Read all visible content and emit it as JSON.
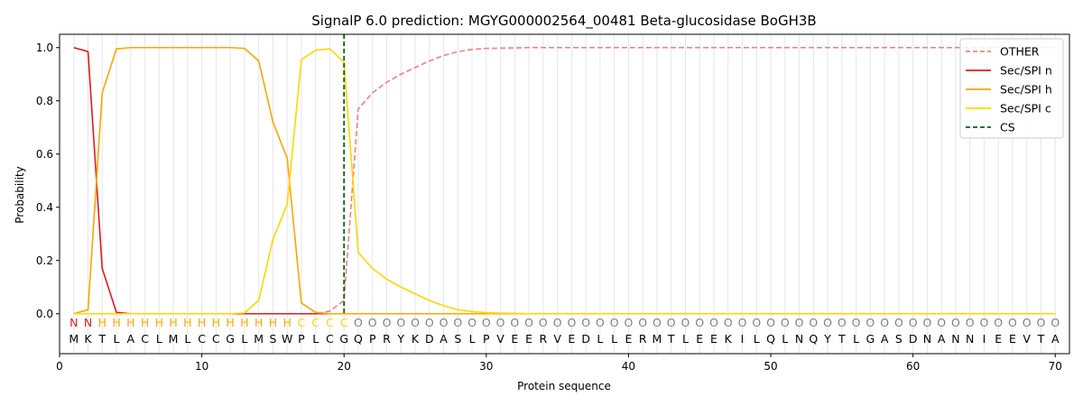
{
  "chart_data": {
    "type": "line",
    "title": "SignalP 6.0 prediction: MGYG000002564_00481 Beta-glucosidase BoGH3B",
    "xlabel": "Protein sequence",
    "ylabel": "Probability",
    "xlim": [
      0,
      71
    ],
    "ylim": [
      -0.15,
      1.05
    ],
    "x_ticks": [
      0,
      10,
      20,
      30,
      40,
      50,
      60,
      70
    ],
    "y_ticks": [
      0.0,
      0.2,
      0.4,
      0.6,
      0.8,
      1.0
    ],
    "x_tick_labels": [
      "0",
      "10",
      "20",
      "30",
      "40",
      "50",
      "60",
      "70"
    ],
    "y_tick_labels": [
      "0.0",
      "0.2",
      "0.4",
      "0.6",
      "0.8",
      "1.0"
    ],
    "grid": "vertical lines at each residue",
    "legend_position": "top-right",
    "sequence": [
      "M",
      "K",
      "T",
      "L",
      "A",
      "C",
      "L",
      "M",
      "L",
      "C",
      "C",
      "G",
      "L",
      "M",
      "S",
      "W",
      "P",
      "L",
      "C",
      "G",
      "Q",
      "P",
      "R",
      "Y",
      "K",
      "D",
      "A",
      "S",
      "L",
      "P",
      "V",
      "E",
      "E",
      "R",
      "V",
      "E",
      "D",
      "L",
      "L",
      "E",
      "R",
      "M",
      "T",
      "L",
      "E",
      "E",
      "K",
      "I",
      "L",
      "Q",
      "L",
      "N",
      "Q",
      "Y",
      "T",
      "L",
      "G",
      "A",
      "S",
      "D",
      "N",
      "A",
      "N",
      "N",
      "I",
      "E",
      "E",
      "V",
      "T",
      "A"
    ],
    "annotation": [
      "N",
      "N",
      "H",
      "H",
      "H",
      "H",
      "H",
      "H",
      "H",
      "H",
      "H",
      "H",
      "H",
      "H",
      "H",
      "H",
      "C",
      "C",
      "C",
      "C",
      "O",
      "O",
      "O",
      "O",
      "O",
      "O",
      "O",
      "O",
      "O",
      "O",
      "O",
      "O",
      "O",
      "O",
      "O",
      "O",
      "O",
      "O",
      "O",
      "O",
      "O",
      "O",
      "O",
      "O",
      "O",
      "O",
      "O",
      "O",
      "O",
      "O",
      "O",
      "O",
      "O",
      "O",
      "O",
      "O",
      "O",
      "O",
      "O",
      "O",
      "O",
      "O",
      "O",
      "O",
      "O",
      "O",
      "O",
      "O",
      "O",
      "O"
    ],
    "annotation_colors": {
      "N": "#e41a1c",
      "H": "#ffa500",
      "C": "#ffd700",
      "O": "#808080"
    },
    "cs_position": 20,
    "series": [
      {
        "name": "OTHER",
        "color": "#f08080",
        "dash": true,
        "values": [
          0.0,
          0.0,
          0.0,
          0.0,
          0.0,
          0.0,
          0.0,
          0.0,
          0.0,
          0.0,
          0.0,
          0.0,
          0.0,
          0.0,
          0.0,
          0.0,
          0.0,
          0.0,
          0.01,
          0.05,
          0.77,
          0.83,
          0.87,
          0.9,
          0.925,
          0.95,
          0.97,
          0.985,
          0.993,
          0.997,
          0.998,
          0.999,
          1.0,
          1.0,
          1.0,
          1.0,
          1.0,
          1.0,
          1.0,
          1.0,
          1.0,
          1.0,
          1.0,
          1.0,
          1.0,
          1.0,
          1.0,
          1.0,
          1.0,
          1.0,
          1.0,
          1.0,
          1.0,
          1.0,
          1.0,
          1.0,
          1.0,
          1.0,
          1.0,
          1.0,
          1.0,
          1.0,
          1.0,
          1.0,
          1.0,
          1.0,
          1.0,
          1.0,
          1.0,
          1.0
        ]
      },
      {
        "name": "Sec/SPI n",
        "color": "#e41a1c",
        "dash": false,
        "values": [
          1.0,
          0.985,
          0.17,
          0.005,
          0.0,
          0.0,
          0.0,
          0.0,
          0.0,
          0.0,
          0.0,
          0.0,
          0.0,
          0.0,
          0.0,
          0.0,
          0.0,
          0.0,
          0.0,
          0.0,
          0.0,
          0.0,
          0.0,
          0.0,
          0.0,
          0.0,
          0.0,
          0.0,
          0.0,
          0.0,
          0.0,
          0.0,
          0.0,
          0.0,
          0.0,
          0.0,
          0.0,
          0.0,
          0.0,
          0.0,
          0.0,
          0.0,
          0.0,
          0.0,
          0.0,
          0.0,
          0.0,
          0.0,
          0.0,
          0.0,
          0.0,
          0.0,
          0.0,
          0.0,
          0.0,
          0.0,
          0.0,
          0.0,
          0.0,
          0.0,
          0.0,
          0.0,
          0.0,
          0.0,
          0.0,
          0.0,
          0.0,
          0.0,
          0.0,
          0.0
        ]
      },
      {
        "name": "Sec/SPI h",
        "color": "#ffa500",
        "dash": false,
        "values": [
          0.0,
          0.015,
          0.83,
          0.995,
          1.0,
          1.0,
          1.0,
          1.0,
          1.0,
          1.0,
          1.0,
          1.0,
          0.997,
          0.95,
          0.72,
          0.585,
          0.04,
          0.005,
          0.0,
          0.0,
          0.0,
          0.0,
          0.0,
          0.0,
          0.0,
          0.0,
          0.0,
          0.0,
          0.0,
          0.0,
          0.0,
          0.0,
          0.0,
          0.0,
          0.0,
          0.0,
          0.0,
          0.0,
          0.0,
          0.0,
          0.0,
          0.0,
          0.0,
          0.0,
          0.0,
          0.0,
          0.0,
          0.0,
          0.0,
          0.0,
          0.0,
          0.0,
          0.0,
          0.0,
          0.0,
          0.0,
          0.0,
          0.0,
          0.0,
          0.0,
          0.0,
          0.0,
          0.0,
          0.0,
          0.0,
          0.0,
          0.0,
          0.0,
          0.0,
          0.0
        ]
      },
      {
        "name": "Sec/SPI c",
        "color": "#ffd700",
        "dash": false,
        "values": [
          0.0,
          0.0,
          0.0,
          0.0,
          0.0,
          0.0,
          0.0,
          0.0,
          0.0,
          0.0,
          0.0,
          0.0,
          0.003,
          0.05,
          0.28,
          0.41,
          0.955,
          0.99,
          0.995,
          0.945,
          0.23,
          0.17,
          0.13,
          0.1,
          0.075,
          0.05,
          0.03,
          0.015,
          0.008,
          0.004,
          0.002,
          0.001,
          0.0,
          0.0,
          0.0,
          0.0,
          0.0,
          0.0,
          0.0,
          0.0,
          0.0,
          0.0,
          0.0,
          0.0,
          0.0,
          0.0,
          0.0,
          0.0,
          0.0,
          0.0,
          0.0,
          0.0,
          0.0,
          0.0,
          0.0,
          0.0,
          0.0,
          0.0,
          0.0,
          0.0,
          0.0,
          0.0,
          0.0,
          0.0,
          0.0,
          0.0,
          0.0,
          0.0,
          0.0,
          0.0
        ]
      }
    ],
    "cs_label": "CS",
    "cs_color": "#006400"
  }
}
